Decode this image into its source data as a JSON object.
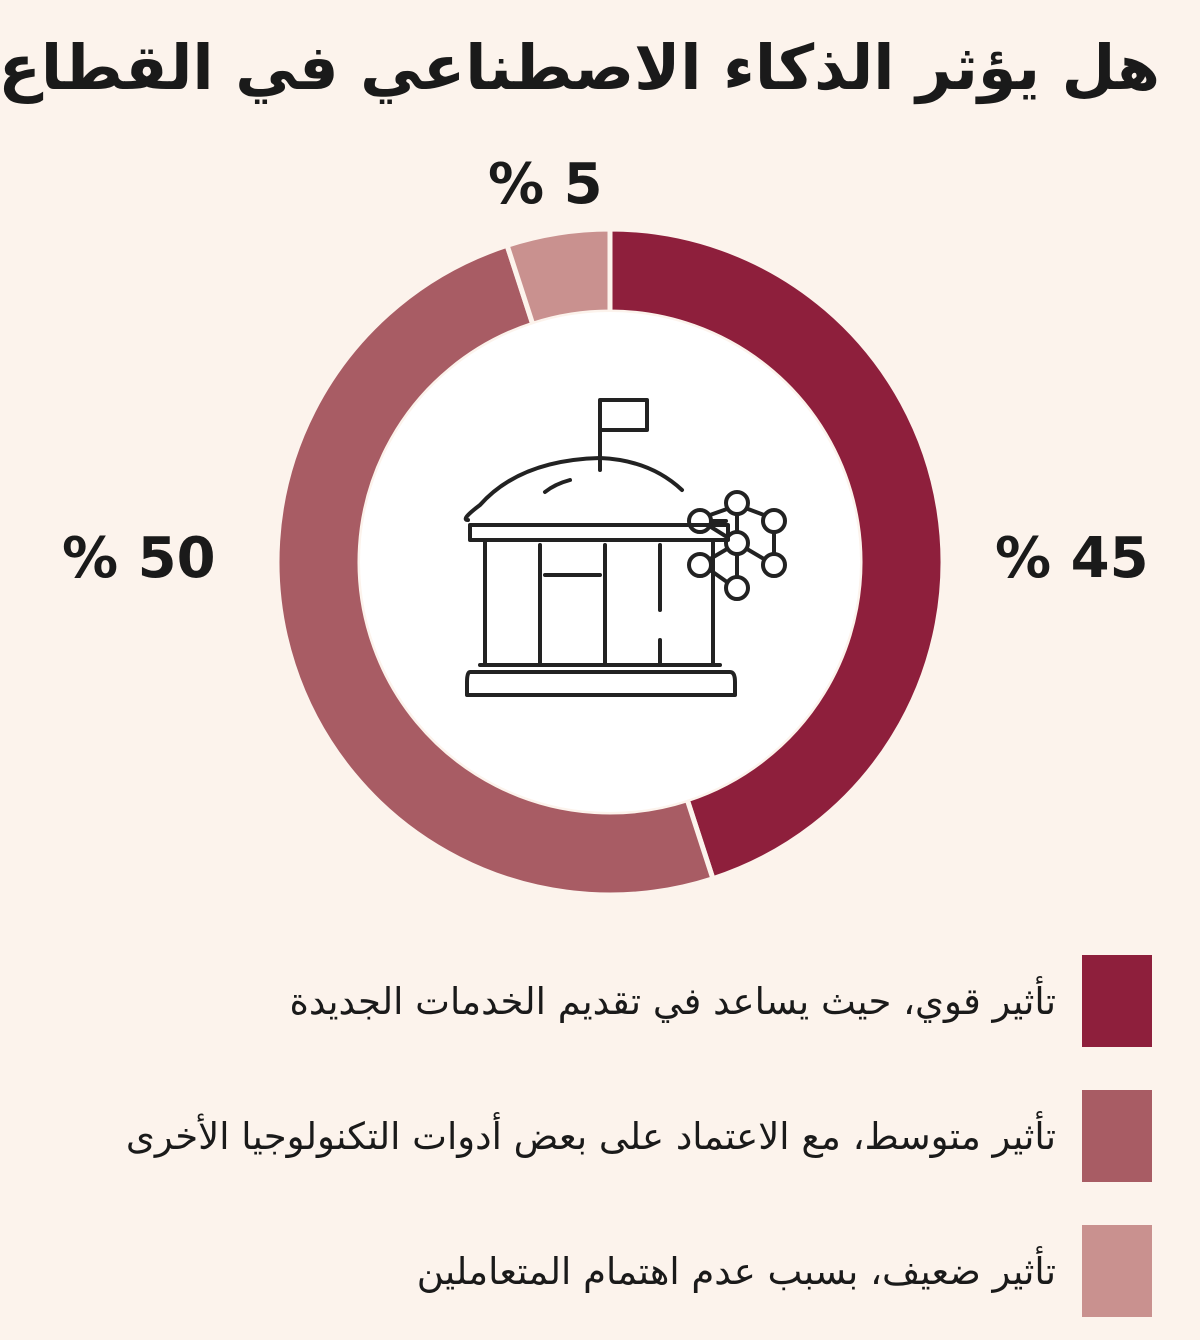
{
  "title": "هل يؤثر الذكاء الاصطناعي في القطاع؟",
  "chart_data": {
    "type": "pie",
    "variant": "donut",
    "title": "هل يؤثر الذكاء الاصطناعي في القطاع؟",
    "categories": [
      "تأثير قوي، حيث يساعد في تقديم الخدمات الجديدة",
      "تأثير متوسط، مع الاعتماد على بعض أدوات التكنولوجيا الأخرى",
      "تأثير ضعيف، بسبب عدم اهتمام المتعاملين"
    ],
    "values": [
      45,
      50,
      5
    ],
    "data_labels": [
      "% 45",
      "% 50",
      "% 5"
    ],
    "colors": [
      "#8e1f3c",
      "#a85c64",
      "#c9918f"
    ],
    "legend_position": "bottom"
  },
  "center_icon": "government-building-network-icon"
}
